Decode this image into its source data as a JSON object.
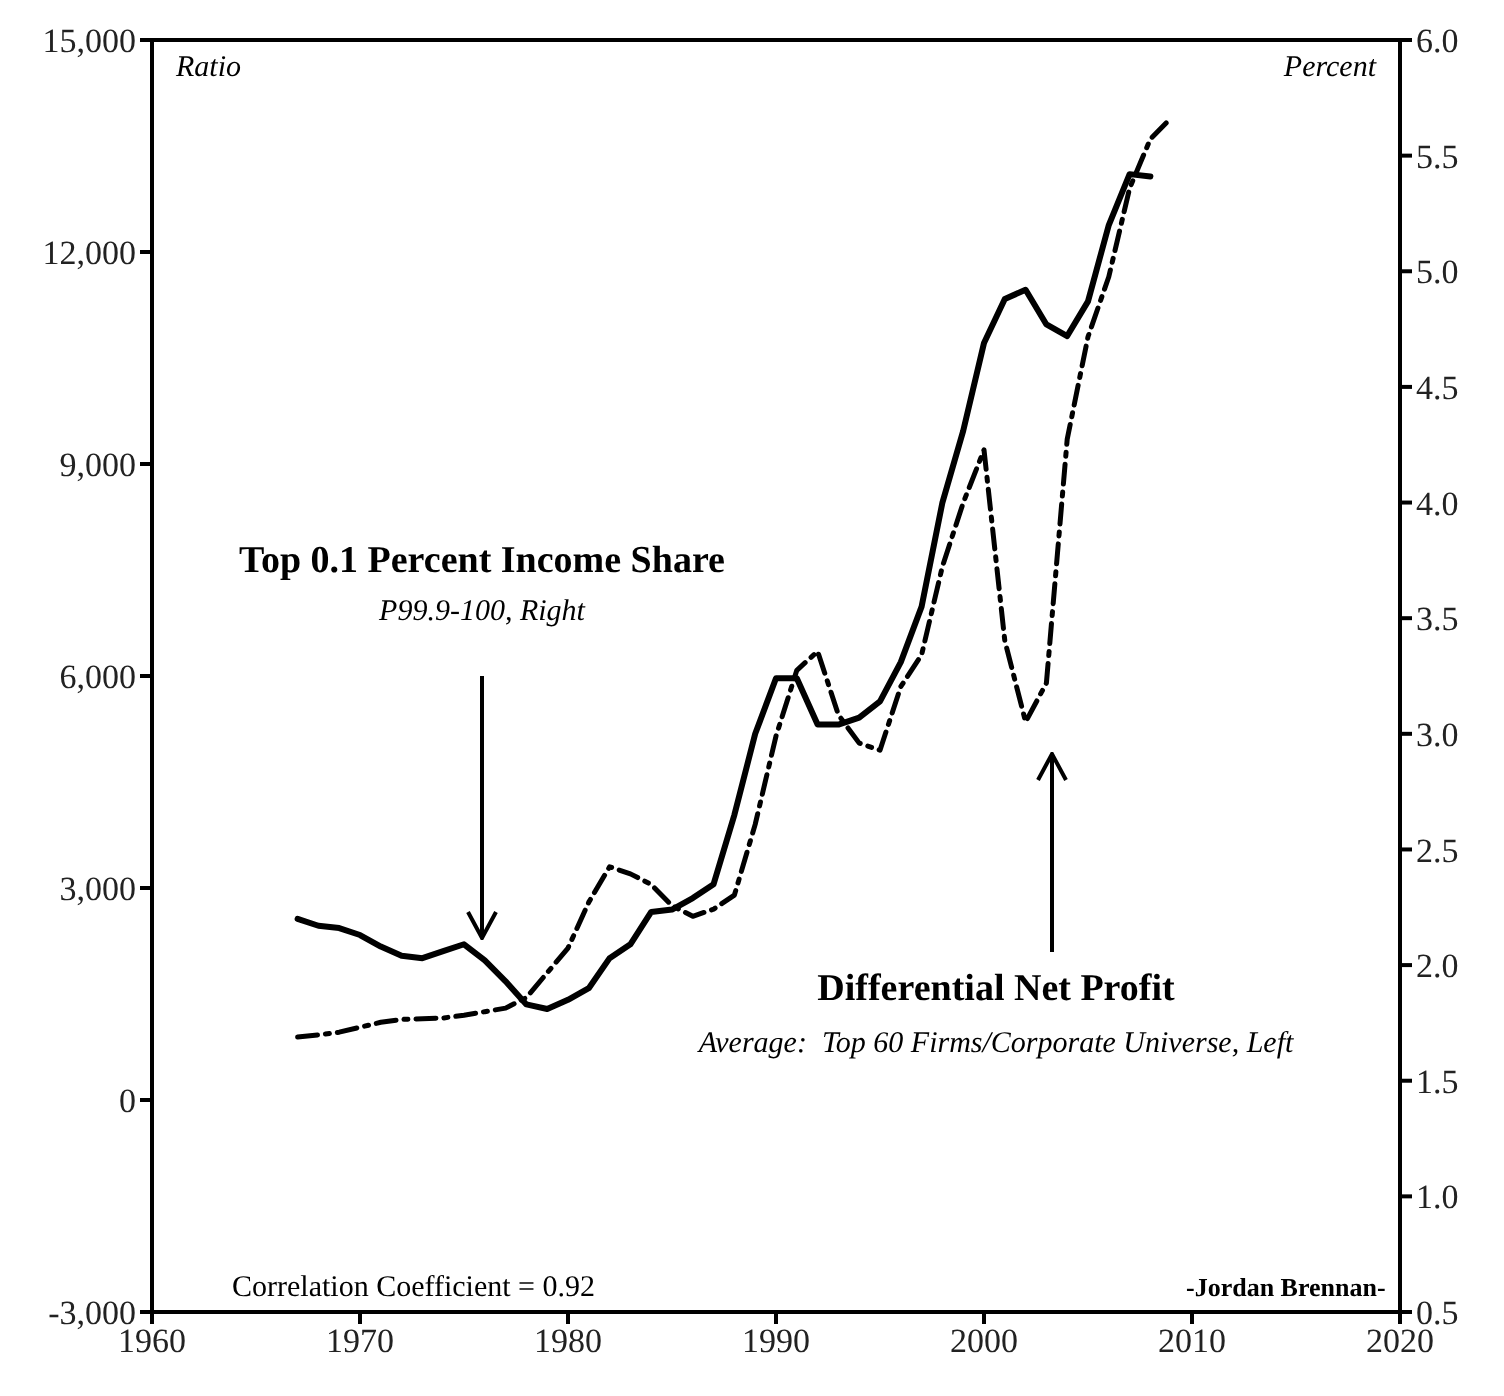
{
  "chart_data": {
    "type": "line",
    "ylabel": "Ratio",
    "y2label": "Percent",
    "xlim": [
      1960,
      2020
    ],
    "xticks": [
      1960,
      1970,
      1980,
      1990,
      2000,
      2010,
      2020
    ],
    "ylim": [
      -3000,
      15000
    ],
    "yticks": [
      {
        "value": -3000,
        "label": "-3,000"
      },
      {
        "value": 0,
        "label": "0"
      },
      {
        "value": 3000,
        "label": "3,000"
      },
      {
        "value": 6000,
        "label": "6,000"
      },
      {
        "value": 9000,
        "label": "9,000"
      },
      {
        "value": 12000,
        "label": "12,000"
      },
      {
        "value": 15000,
        "label": "15,000"
      }
    ],
    "y2lim": [
      0.5,
      6.0
    ],
    "y2ticks": [
      {
        "value": 0.5,
        "label": "0.5"
      },
      {
        "value": 1,
        "label": "1.0"
      },
      {
        "value": 1.5,
        "label": "1.5"
      },
      {
        "value": 2,
        "label": "2.0"
      },
      {
        "value": 2.5,
        "label": "2.5"
      },
      {
        "value": 3,
        "label": "3.0"
      },
      {
        "value": 3.5,
        "label": "3.5"
      },
      {
        "value": 4,
        "label": "4.0"
      },
      {
        "value": 4.5,
        "label": "4.5"
      },
      {
        "value": 5,
        "label": "5.0"
      },
      {
        "value": 5.5,
        "label": "5.5"
      },
      {
        "value": 6,
        "label": "6.0"
      }
    ],
    "x": [
      1967,
      1968,
      1969,
      1970,
      1971,
      1972,
      1973,
      1974,
      1975,
      1976,
      1977,
      1978,
      1979,
      1980,
      1981,
      1982,
      1983,
      1984,
      1985,
      1986,
      1987,
      1988,
      1989,
      1990,
      1991,
      1992,
      1993,
      1994,
      1995,
      1996,
      1997,
      1998,
      1999,
      2000,
      2001,
      2002,
      2003,
      2004,
      2005,
      2006,
      2007,
      2008
    ],
    "series": [
      {
        "name": "Top 0.1 Percent Income Share",
        "color": "#000000",
        "axis": "y2",
        "line_style": "solid",
        "values": [
          2.2,
          2.17,
          2.16,
          2.13,
          2.08,
          2.04,
          2.03,
          2.06,
          2.09,
          2.02,
          1.93,
          1.83,
          1.81,
          1.85,
          1.9,
          2.03,
          2.09,
          2.23,
          2.24,
          2.29,
          2.35,
          2.65,
          3.0,
          3.24,
          3.24,
          3.04,
          3.04,
          3.07,
          3.14,
          3.31,
          3.55,
          4.0,
          4.31,
          4.69,
          4.88,
          4.92,
          4.77,
          4.72,
          4.87,
          5.2,
          5.42,
          5.41
        ]
      },
      {
        "name": "Differential Net Profit",
        "color": "#000000",
        "axis": "y",
        "line_style": "dashed",
        "x": [
          1967,
          1968,
          1969,
          1970,
          1971,
          1972,
          1973,
          1974,
          1975,
          1976,
          1977,
          1978,
          1979,
          1980,
          1981,
          1982,
          1983,
          1984,
          1985,
          1986,
          1987,
          1988,
          1989,
          1990,
          1991,
          1992,
          1993,
          1994,
          1995,
          1996,
          1997,
          1998,
          1999,
          2000,
          2001,
          2002,
          2003,
          2004,
          2005,
          2006,
          2007,
          2008,
          2009
        ],
        "values": [
          890,
          920,
          960,
          1030,
          1100,
          1140,
          1150,
          1160,
          1200,
          1250,
          1300,
          1450,
          1800,
          2150,
          2800,
          3300,
          3200,
          3050,
          2750,
          2600,
          2700,
          2900,
          3900,
          5150,
          6080,
          6350,
          5450,
          5050,
          4950,
          5850,
          6300,
          7550,
          8450,
          9200,
          6500,
          5350,
          5900,
          9350,
          10800,
          11650,
          12900,
          13600,
          13900
        ]
      }
    ],
    "annotations": [
      "P99.9-100, Right",
      "Average:  Top 60 Firms/Corporate Universe, Left",
      "Correlation Coefficient = 0.92",
      "-Jordan Brennan-"
    ],
    "grid": false,
    "legend": false,
    "marker": "none"
  }
}
